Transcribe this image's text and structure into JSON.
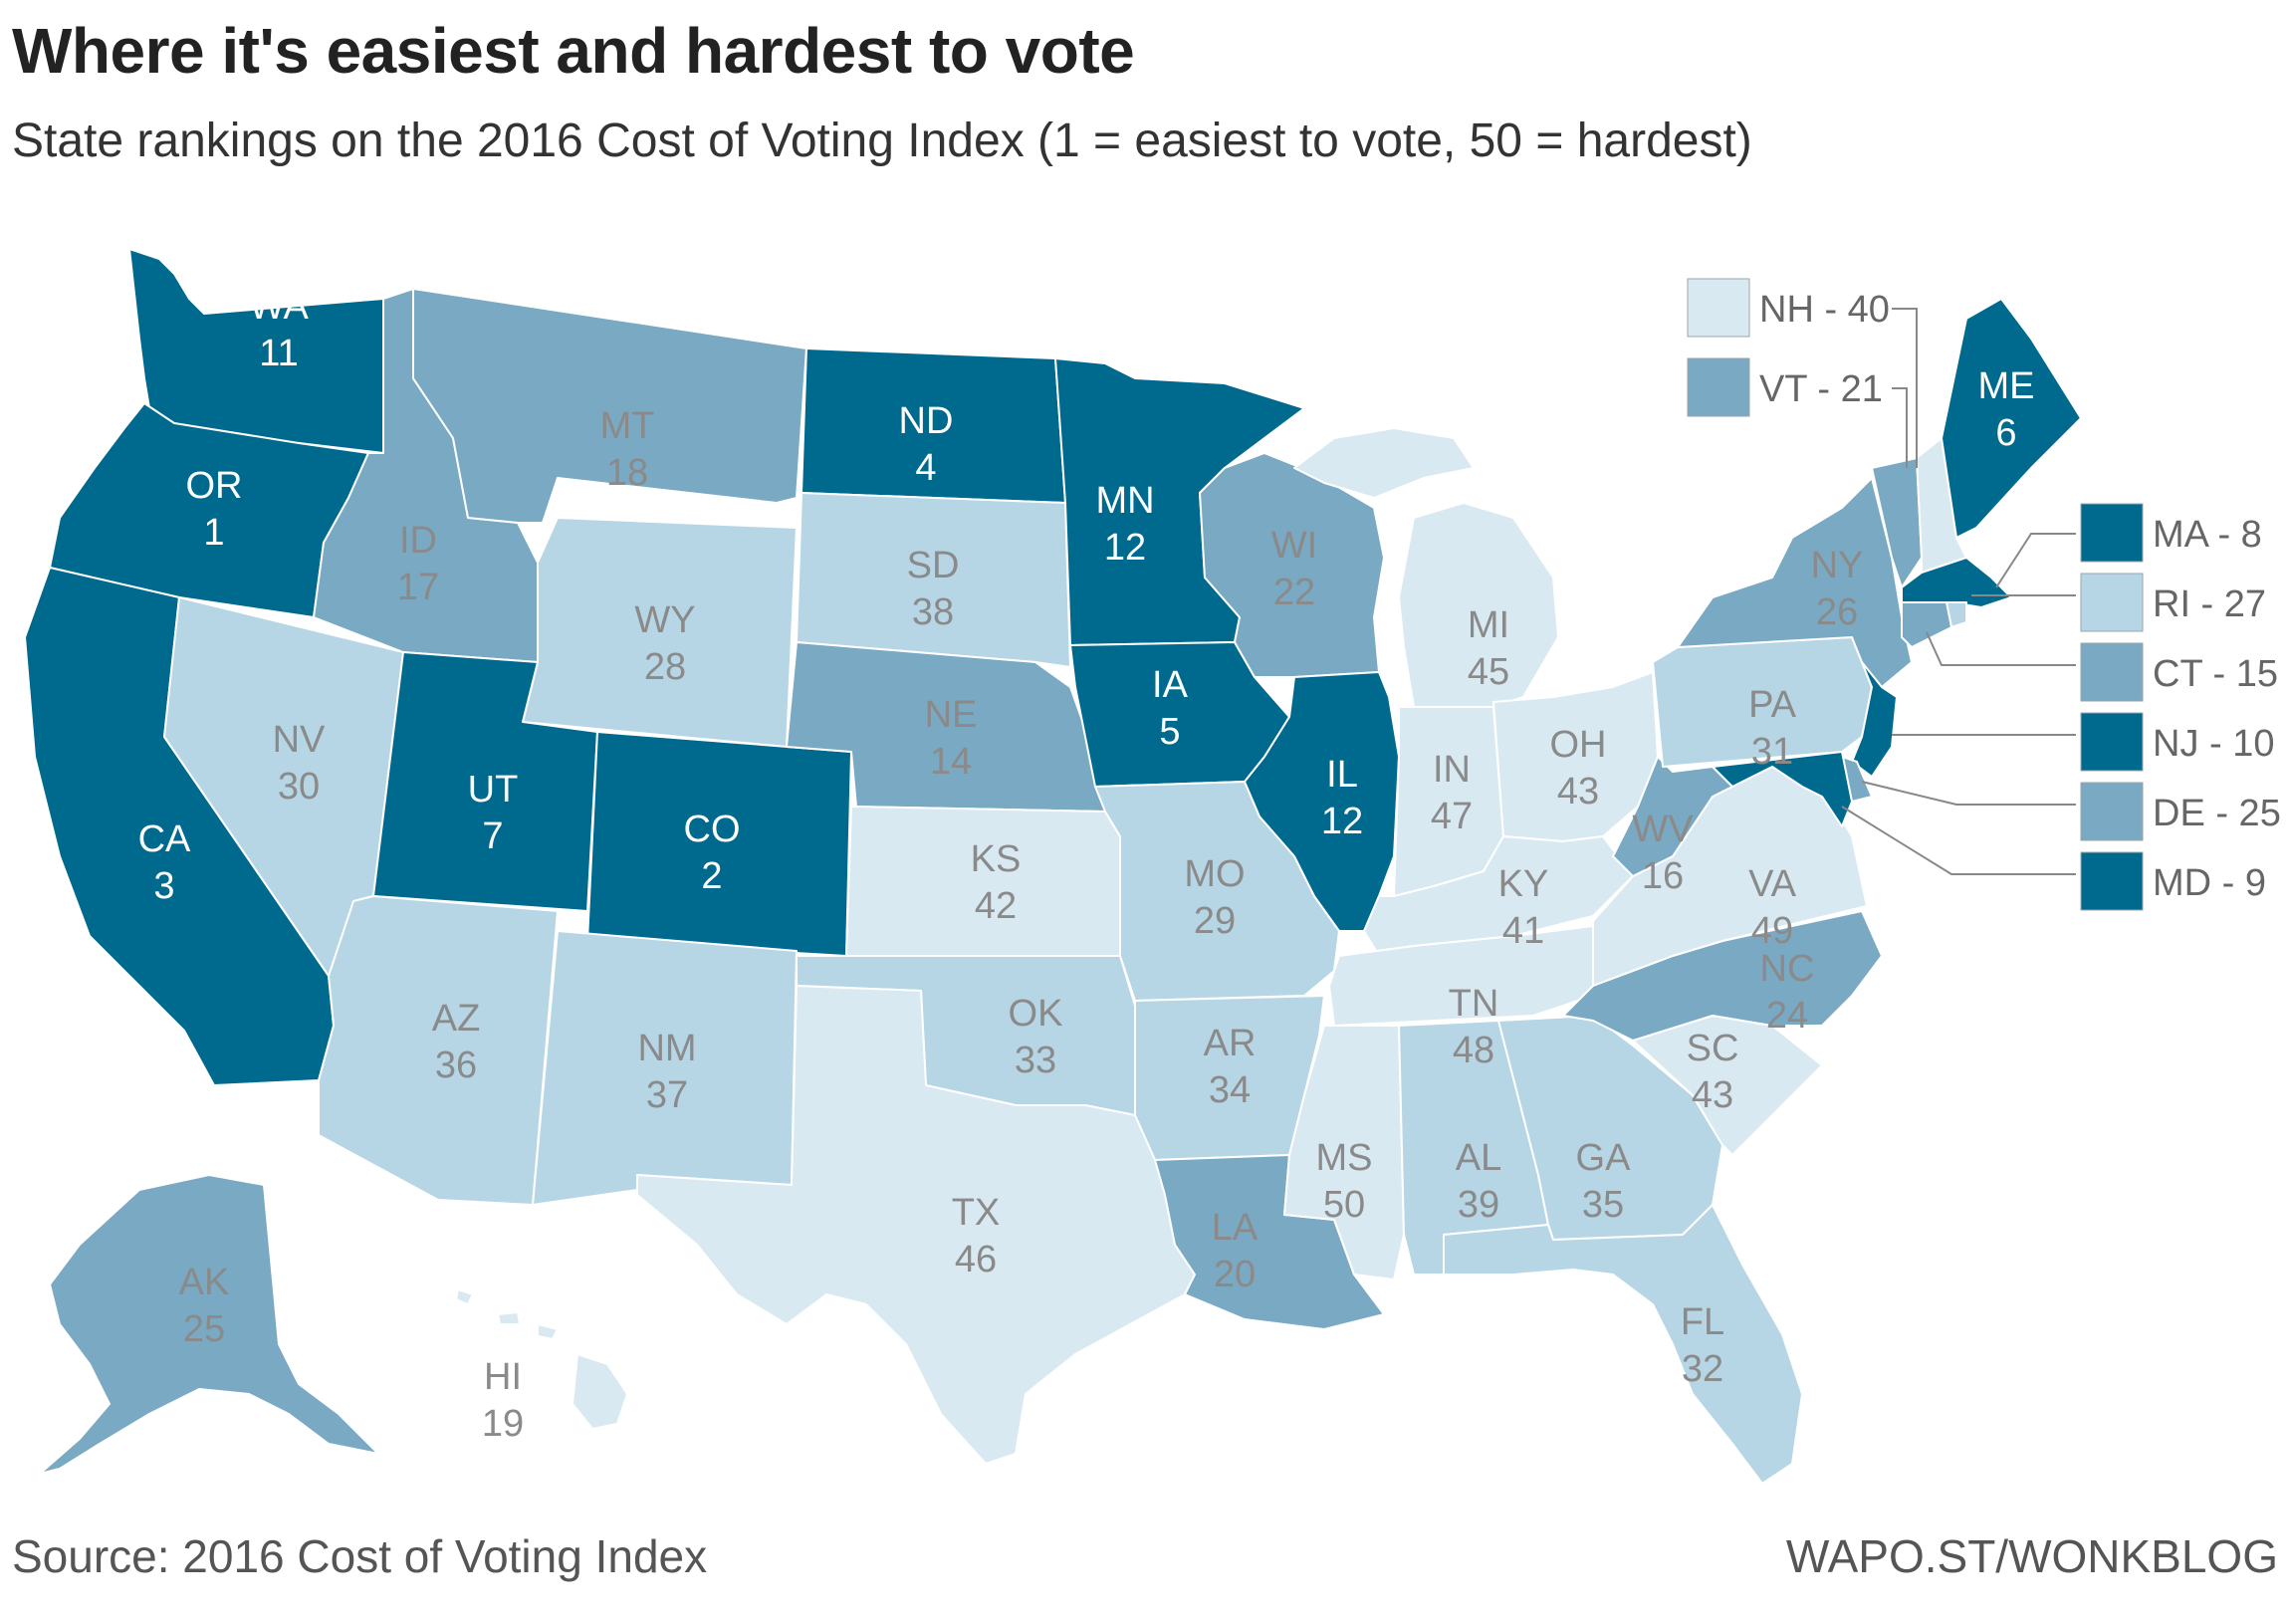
{
  "title": "Where it's easiest and hardest to vote",
  "subtitle": "State rankings on the 2016 Cost of Voting Index (1 = easiest to vote, 50 = hardest)",
  "source": "Source: 2016 Cost of Voting Index",
  "credit": "WAPO.ST/WONKBLOG",
  "colors": {
    "tier1": "#006a8e",
    "tier2": "#7aa9c3",
    "tier3": "#b6d6e6",
    "tier4": "#d9e9f2",
    "label_dark": "#ffffff",
    "label_light": "#8a8a8a"
  },
  "states": [
    {
      "abbr": "WA",
      "rank": "11",
      "tier": 1
    },
    {
      "abbr": "OR",
      "rank": "1",
      "tier": 1
    },
    {
      "abbr": "CA",
      "rank": "3",
      "tier": 1
    },
    {
      "abbr": "NV",
      "rank": "30",
      "tier": 3
    },
    {
      "abbr": "ID",
      "rank": "17",
      "tier": 2
    },
    {
      "abbr": "MT",
      "rank": "18",
      "tier": 2
    },
    {
      "abbr": "WY",
      "rank": "28",
      "tier": 3
    },
    {
      "abbr": "UT",
      "rank": "7",
      "tier": 1
    },
    {
      "abbr": "AZ",
      "rank": "36",
      "tier": 3
    },
    {
      "abbr": "CO",
      "rank": "2",
      "tier": 1
    },
    {
      "abbr": "NM",
      "rank": "37",
      "tier": 3
    },
    {
      "abbr": "ND",
      "rank": "4",
      "tier": 1
    },
    {
      "abbr": "SD",
      "rank": "38",
      "tier": 3
    },
    {
      "abbr": "NE",
      "rank": "14",
      "tier": 2
    },
    {
      "abbr": "KS",
      "rank": "42",
      "tier": 4
    },
    {
      "abbr": "OK",
      "rank": "33",
      "tier": 3
    },
    {
      "abbr": "TX",
      "rank": "46",
      "tier": 4
    },
    {
      "abbr": "MN",
      "rank": "12",
      "tier": 1
    },
    {
      "abbr": "IA",
      "rank": "5",
      "tier": 1
    },
    {
      "abbr": "MO",
      "rank": "29",
      "tier": 3
    },
    {
      "abbr": "AR",
      "rank": "34",
      "tier": 3
    },
    {
      "abbr": "LA",
      "rank": "20",
      "tier": 2
    },
    {
      "abbr": "WI",
      "rank": "22",
      "tier": 2
    },
    {
      "abbr": "IL",
      "rank": "12",
      "tier": 1
    },
    {
      "abbr": "MI",
      "rank": "45",
      "tier": 4
    },
    {
      "abbr": "IN",
      "rank": "47",
      "tier": 4
    },
    {
      "abbr": "OH",
      "rank": "43",
      "tier": 4
    },
    {
      "abbr": "KY",
      "rank": "41",
      "tier": 4
    },
    {
      "abbr": "TN",
      "rank": "48",
      "tier": 4
    },
    {
      "abbr": "MS",
      "rank": "50",
      "tier": 4
    },
    {
      "abbr": "AL",
      "rank": "39",
      "tier": 3
    },
    {
      "abbr": "GA",
      "rank": "35",
      "tier": 3
    },
    {
      "abbr": "FL",
      "rank": "32",
      "tier": 3
    },
    {
      "abbr": "SC",
      "rank": "43",
      "tier": 4
    },
    {
      "abbr": "NC",
      "rank": "24",
      "tier": 2
    },
    {
      "abbr": "VA",
      "rank": "49",
      "tier": 4
    },
    {
      "abbr": "WV",
      "rank": "16",
      "tier": 2
    },
    {
      "abbr": "PA",
      "rank": "31",
      "tier": 3
    },
    {
      "abbr": "NY",
      "rank": "26",
      "tier": 2
    },
    {
      "abbr": "ME",
      "rank": "6",
      "tier": 1
    },
    {
      "abbr": "AK",
      "rank": "25",
      "tier": 2
    },
    {
      "abbr": "HI",
      "rank": "19",
      "tier": 4
    }
  ],
  "callouts": [
    {
      "abbr": "NH",
      "rank": "40",
      "text": "NH - 40",
      "tier": 4
    },
    {
      "abbr": "VT",
      "rank": "21",
      "text": "VT - 21",
      "tier": 2
    },
    {
      "abbr": "MA",
      "rank": "8",
      "text": "MA - 8",
      "tier": 1
    },
    {
      "abbr": "RI",
      "rank": "27",
      "text": "RI - 27",
      "tier": 3
    },
    {
      "abbr": "CT",
      "rank": "15",
      "text": "CT - 15",
      "tier": 2
    },
    {
      "abbr": "NJ",
      "rank": "10",
      "text": "NJ - 10",
      "tier": 1
    },
    {
      "abbr": "DE",
      "rank": "25",
      "text": "DE - 25",
      "tier": 2
    },
    {
      "abbr": "MD",
      "rank": "9",
      "text": "MD - 9",
      "tier": 1
    }
  ]
}
